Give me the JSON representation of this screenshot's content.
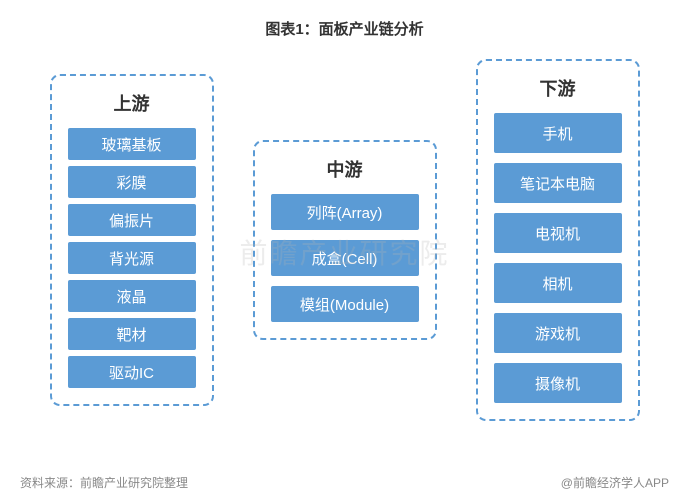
{
  "title": "图表1：面板产业链分析",
  "watermark": "前瞻产业研究院",
  "columns": {
    "upstream": {
      "header": "上游",
      "items": [
        "玻璃基板",
        "彩膜",
        "偏振片",
        "背光源",
        "液晶",
        "靶材",
        "驱动IC"
      ]
    },
    "midstream": {
      "header": "中游",
      "items": [
        "列阵(Array)",
        "成盒(Cell)",
        "模组(Module)"
      ]
    },
    "downstream": {
      "header": "下游",
      "items": [
        "手机",
        "笔记本电脑",
        "电视机",
        "相机",
        "游戏机",
        "摄像机"
      ]
    }
  },
  "footer": {
    "left": "资料来源：前瞻产业研究院整理",
    "right": "@前瞻经济学人APP"
  },
  "style": {
    "border_color": "#5b9bd5",
    "item_bg": "#5b9bd5",
    "item_text": "#ffffff",
    "header_color": "#333333",
    "title_color": "#333333",
    "footer_color": "#888888",
    "background": "#ffffff"
  }
}
